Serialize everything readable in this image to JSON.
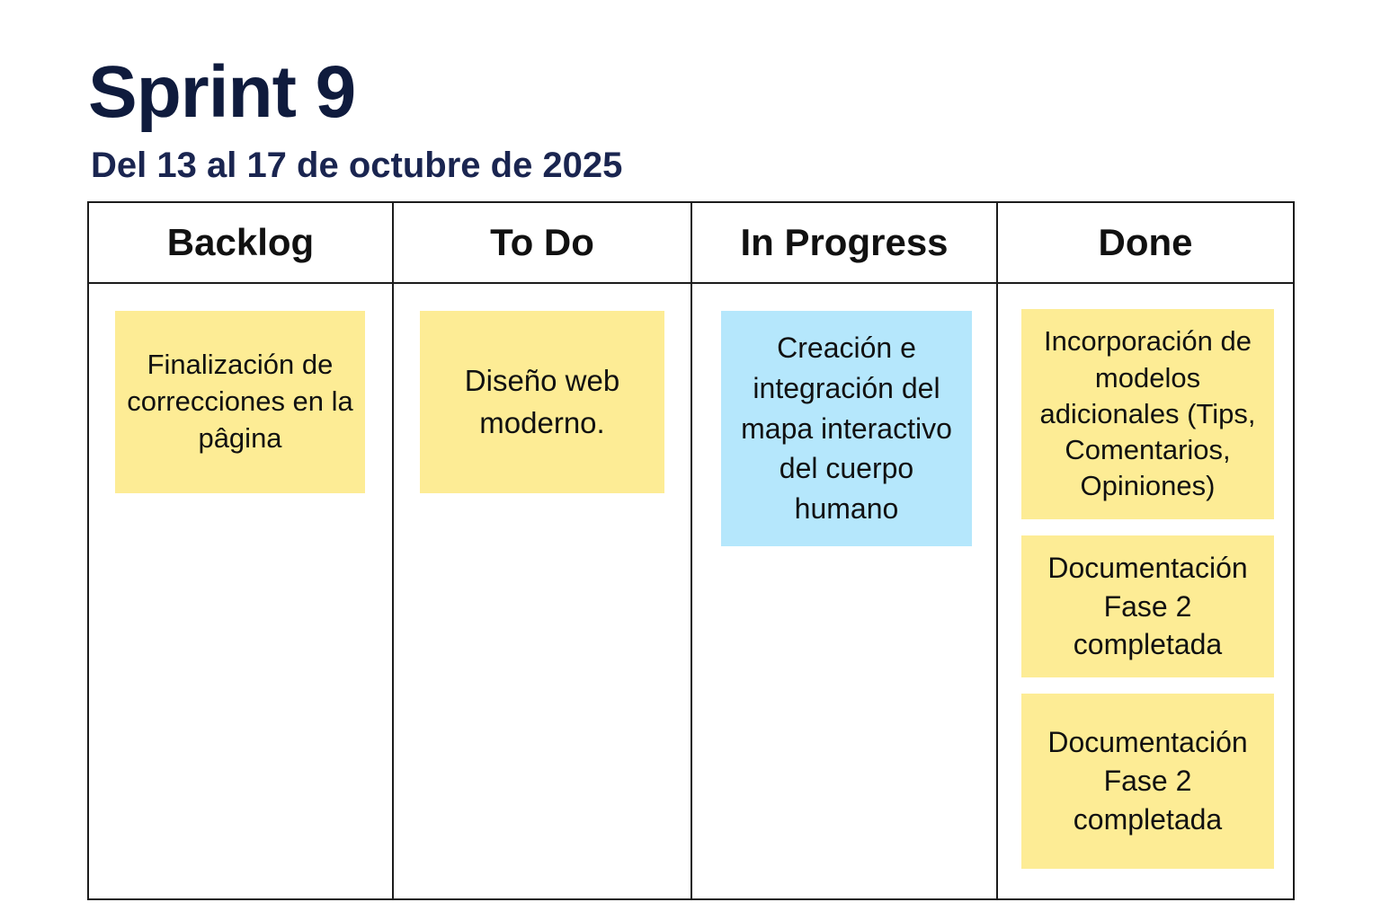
{
  "board": {
    "title": "Sprint 9",
    "subtitle": "Del 13 al 17 de octubre de 2025"
  },
  "colors": {
    "title": "#0f1b3d",
    "card_yellow": "#fdec95",
    "card_blue": "#b5e7fc",
    "border": "#1c1c1c"
  },
  "columns": [
    {
      "label": "Backlog",
      "cards": [
        {
          "text": "Finalización de correcciones en la pâgina",
          "color": "yellow"
        }
      ]
    },
    {
      "label": "To Do",
      "cards": [
        {
          "text": "Diseño web moderno.",
          "color": "yellow"
        }
      ]
    },
    {
      "label": "In Progress",
      "cards": [
        {
          "text": "Creación e integración del mapa interactivo del cuerpo humano",
          "color": "blue"
        }
      ]
    },
    {
      "label": "Done",
      "cards": [
        {
          "text": "Incorporación de modelos adicionales (Tips, Comentarios, Opiniones)",
          "color": "yellow"
        },
        {
          "text": "Documentación Fase 2 completada",
          "color": "yellow"
        },
        {
          "text": "Documentación Fase 2 completada",
          "color": "yellow"
        }
      ]
    }
  ]
}
